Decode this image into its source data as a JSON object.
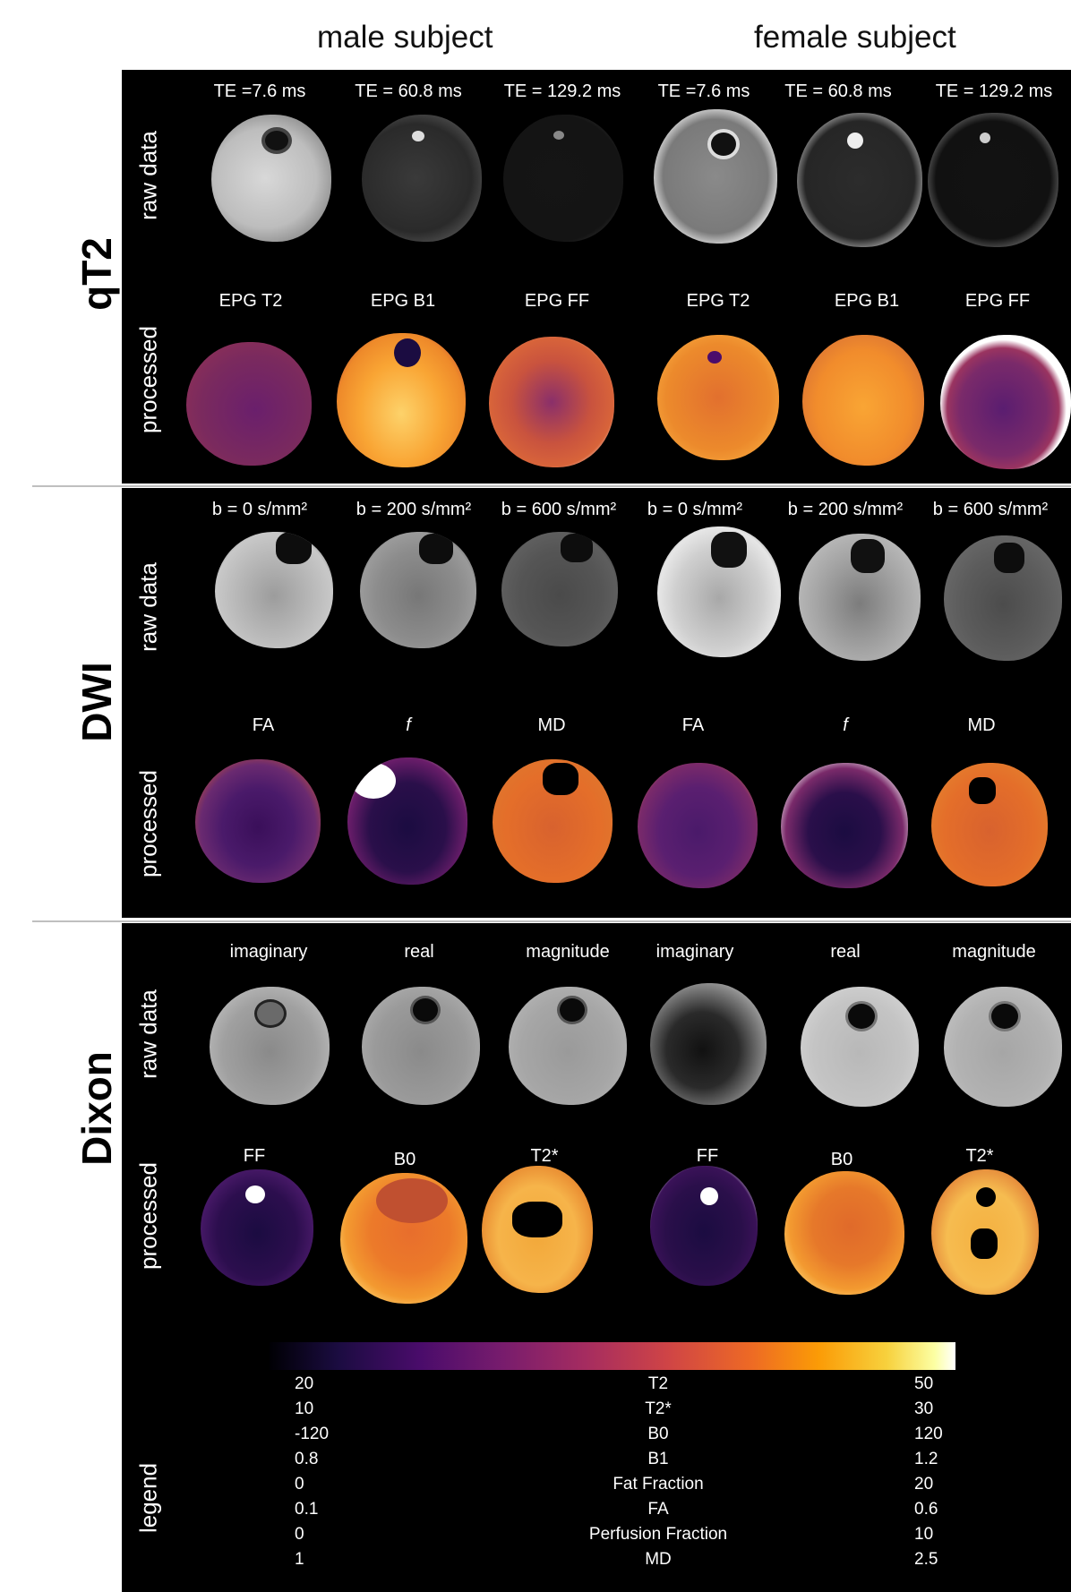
{
  "subjects": {
    "male": "male subject",
    "female": "female subject"
  },
  "sections": {
    "qt2": {
      "label": "qT2",
      "raw_label": "raw data",
      "processed_label": "processed",
      "raw_cols": [
        "TE =7.6 ms",
        "TE = 60.8 ms",
        "TE = 129.2 ms",
        "TE =7.6 ms",
        "TE = 60.8 ms",
        "TE = 129.2 ms"
      ],
      "proc_cols": [
        "EPG T2",
        "EPG B1",
        "EPG FF",
        "EPG T2",
        "EPG B1",
        "EPG FF"
      ]
    },
    "dwi": {
      "label": "DWI",
      "raw_label": "raw data",
      "processed_label": "processed",
      "raw_cols": [
        "b = 0 s/mm²",
        "b = 200 s/mm²",
        "b = 600 s/mm²",
        "b = 0 s/mm²",
        "b = 200 s/mm²",
        "b = 600 s/mm²"
      ],
      "proc_cols": [
        "FA",
        "f",
        "MD",
        "FA",
        "f",
        "MD"
      ]
    },
    "dixon": {
      "label": "Dixon",
      "raw_label": "raw data",
      "processed_label": "processed",
      "raw_cols": [
        "imaginary",
        "real",
        "magnitude",
        "imaginary",
        "real",
        "magnitude"
      ],
      "proc_cols": [
        "FF",
        "B0",
        "T2*",
        "FF",
        "B0",
        "T2*"
      ]
    }
  },
  "legend": {
    "label": "legend",
    "rows": [
      {
        "min": "20",
        "name": "T2",
        "max": "50"
      },
      {
        "min": "10",
        "name": "T2*",
        "max": "30"
      },
      {
        "min": "-120",
        "name": "B0",
        "max": "120"
      },
      {
        "min": "0.8",
        "name": "B1",
        "max": "1.2"
      },
      {
        "min": "0",
        "name": "Fat Fraction",
        "max": "20"
      },
      {
        "min": "0.1",
        "name": "FA",
        "max": "0.6"
      },
      {
        "min": "0",
        "name": "Perfusion Fraction",
        "max": "10"
      },
      {
        "min": "1",
        "name": "MD",
        "max": "2.5"
      }
    ]
  }
}
